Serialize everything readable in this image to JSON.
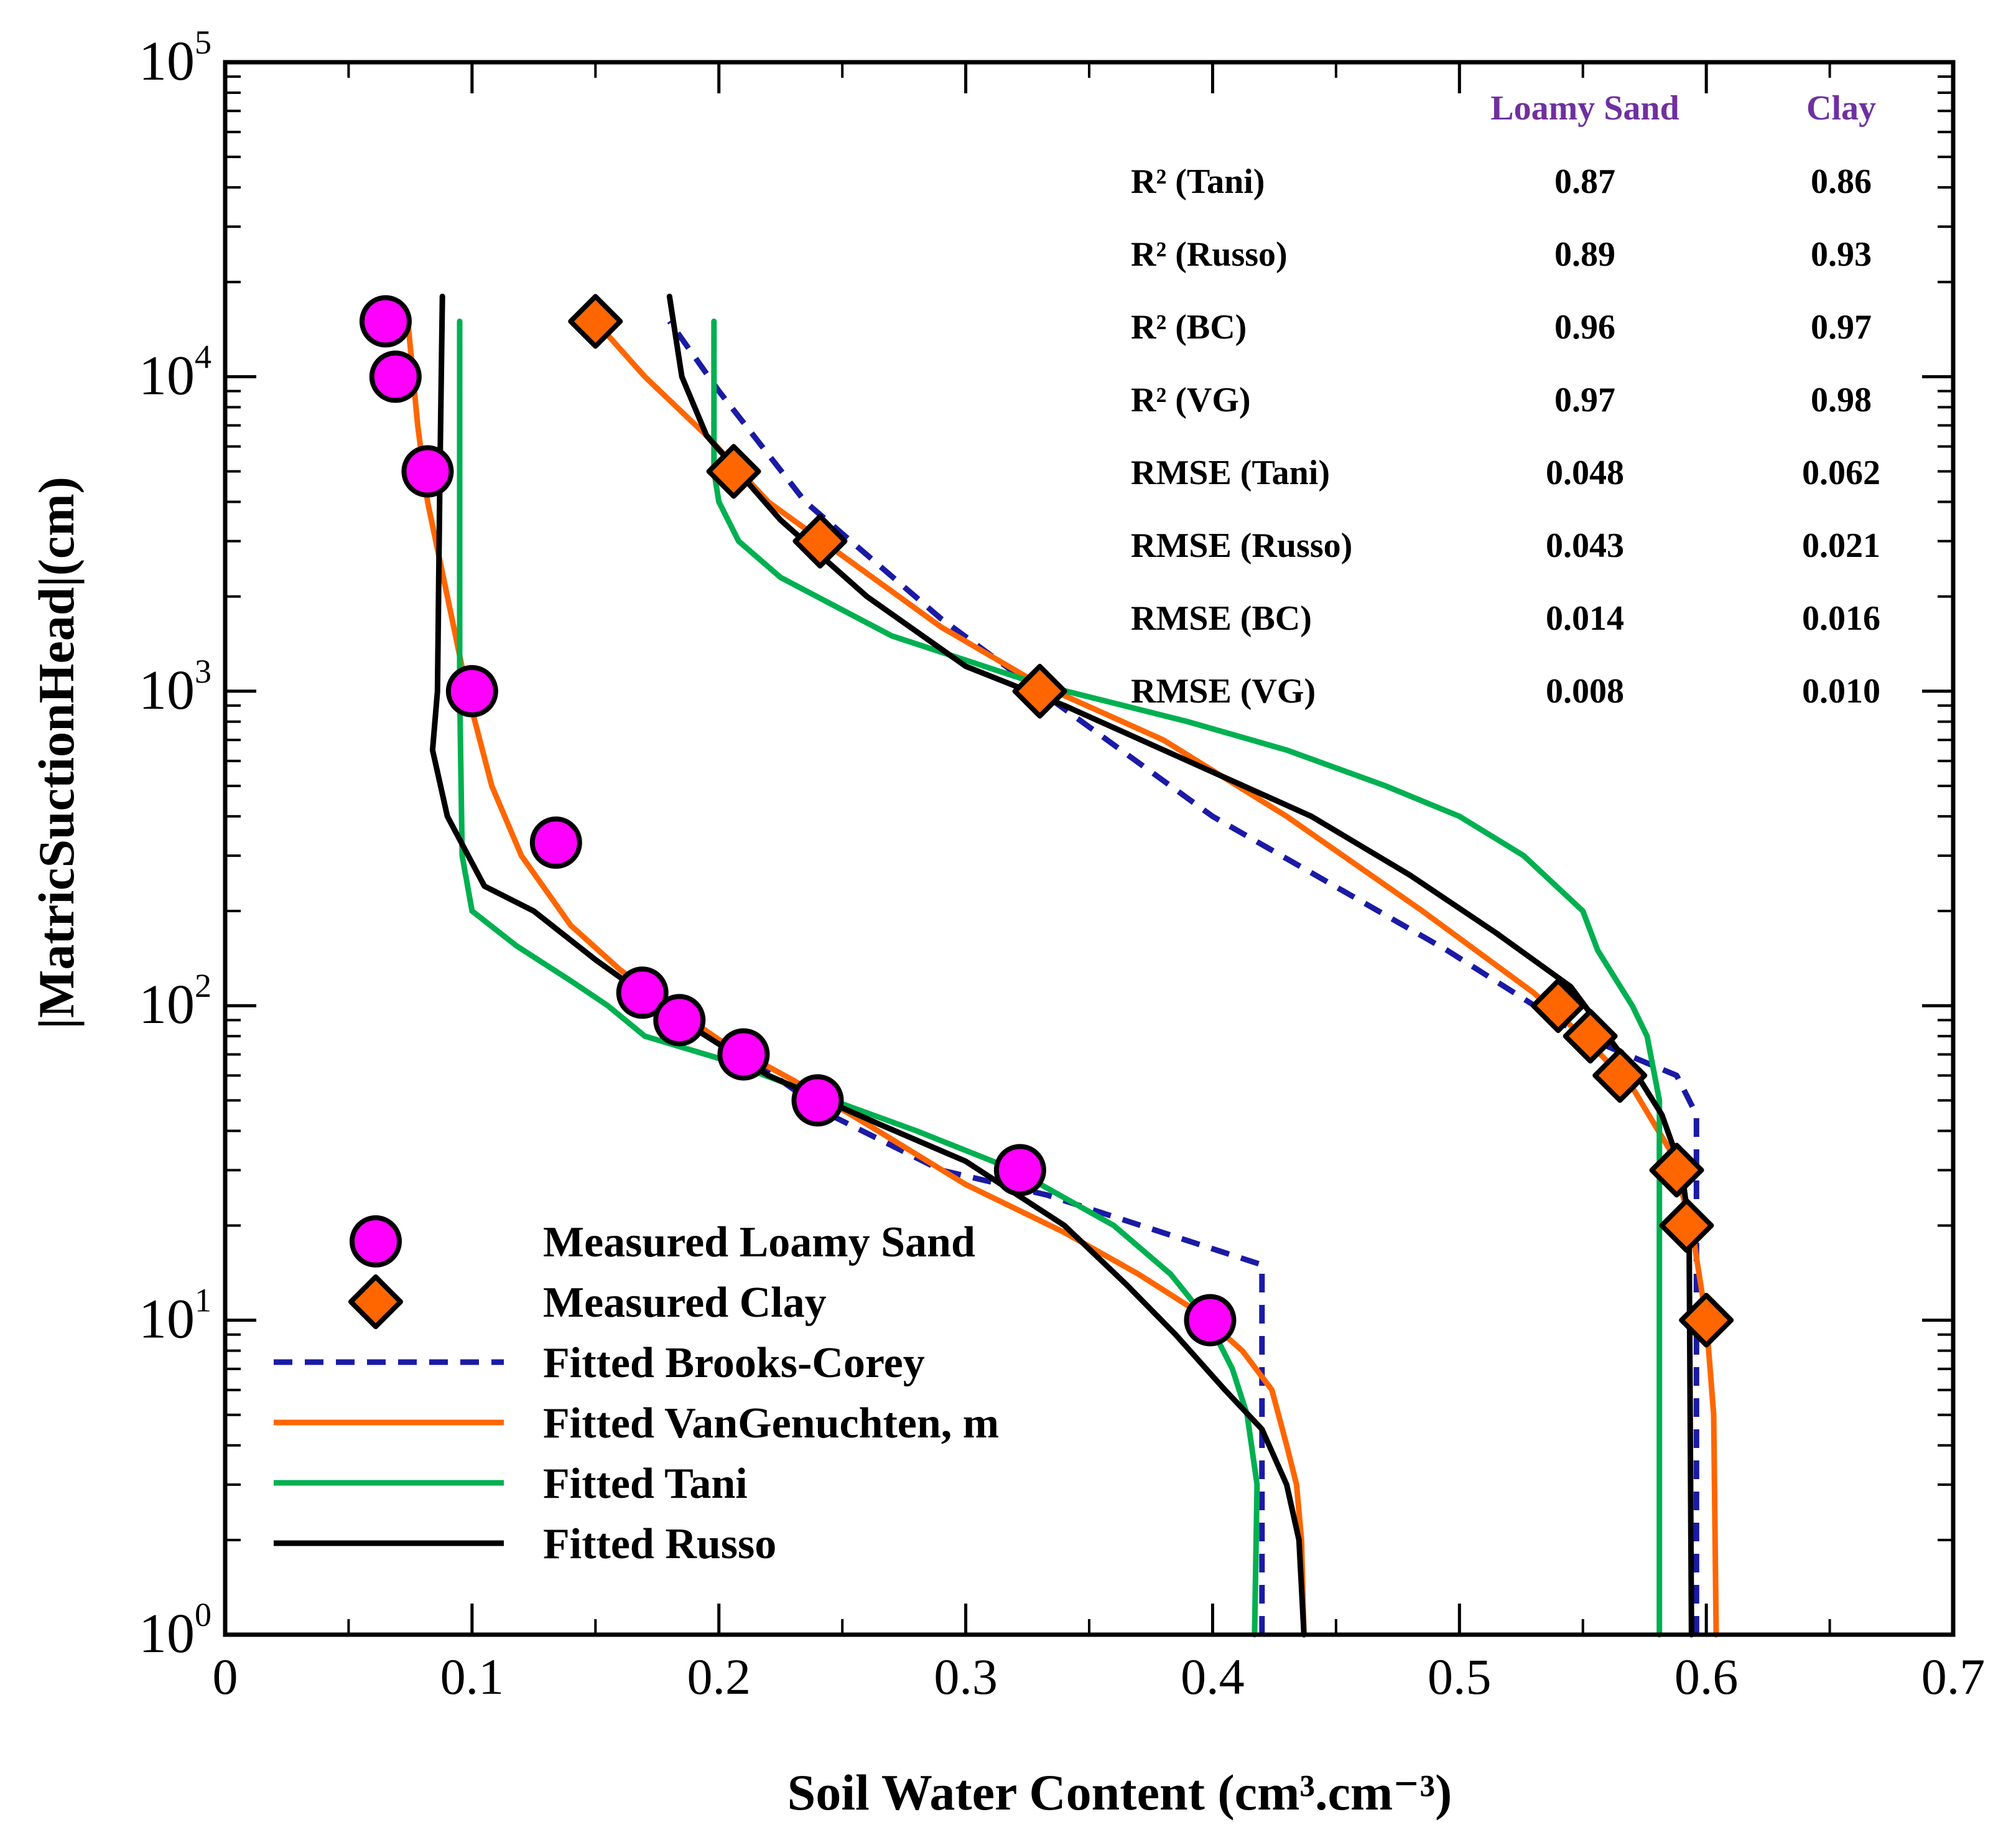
{
  "chart_data": {
    "type": "scatter",
    "xlabel": "Soil Water Content (cm³.cm⁻³)",
    "ylabel": "|MatricSuctionHead|(cm)",
    "xlim": [
      0,
      0.7
    ],
    "ylim": [
      1,
      100000
    ],
    "yscale": "log",
    "x_ticks": [
      "0",
      "0.1",
      "0.2",
      "0.3",
      "0.4",
      "0.5",
      "0.6",
      "0.7"
    ],
    "x_tick_values": [
      0,
      0.1,
      0.2,
      0.3,
      0.4,
      0.5,
      0.6,
      0.7
    ],
    "y_ticks": [
      {
        "value": 1,
        "base": "10",
        "exp": "0"
      },
      {
        "value": 10,
        "base": "10",
        "exp": "1"
      },
      {
        "value": 100,
        "base": "10",
        "exp": "2"
      },
      {
        "value": 1000,
        "base": "10",
        "exp": "3"
      },
      {
        "value": 10000,
        "base": "10",
        "exp": "4"
      },
      {
        "value": 100000,
        "base": "10",
        "exp": "5"
      }
    ],
    "grid": false,
    "legend_position": "bottom-left",
    "series": [
      {
        "name": "Measured Loamy Sand",
        "kind": "marker",
        "marker": "circle",
        "color": "#ff00ff",
        "edge": "#000000",
        "points": [
          [
            0.065,
            15000
          ],
          [
            0.069,
            10000
          ],
          [
            0.082,
            5000
          ],
          [
            0.1,
            1000
          ],
          [
            0.134,
            330
          ],
          [
            0.169,
            110
          ],
          [
            0.184,
            90
          ],
          [
            0.21,
            70
          ],
          [
            0.24,
            50
          ],
          [
            0.322,
            30
          ],
          [
            0.399,
            10
          ]
        ]
      },
      {
        "name": "Measured Clay",
        "kind": "marker",
        "marker": "diamond",
        "color": "#ff6600",
        "edge": "#000000",
        "points": [
          [
            0.15,
            15000
          ],
          [
            0.206,
            5000
          ],
          [
            0.241,
            3000
          ],
          [
            0.33,
            1000
          ],
          [
            0.54,
            100
          ],
          [
            0.553,
            80
          ],
          [
            0.565,
            60
          ],
          [
            0.588,
            30
          ],
          [
            0.592,
            20
          ],
          [
            0.6,
            10
          ]
        ]
      },
      {
        "name": "Fitted Brooks-Corey",
        "kind": "line",
        "dash": "dashed",
        "color": "#1a1aa6",
        "curves": [
          [
            [
              0.42,
              1
            ],
            [
              0.42,
              15
            ],
            [
              0.333,
              25
            ],
            [
              0.29,
              30
            ],
            [
              0.245,
              45
            ],
            [
              0.21,
              70
            ],
            [
              0.185,
              88
            ],
            [
              0.168,
              110
            ]
          ],
          [
            [
              0.596,
              1
            ],
            [
              0.596,
              45
            ],
            [
              0.588,
              60
            ],
            [
              0.55,
              80
            ],
            [
              0.495,
              150
            ],
            [
              0.4,
              400
            ],
            [
              0.33,
              1000
            ],
            [
              0.29,
              1700
            ],
            [
              0.235,
              4000
            ],
            [
              0.2,
              9000
            ],
            [
              0.18,
              15000
            ]
          ]
        ]
      },
      {
        "name": "Fitted VanGenuchten, m",
        "kind": "line",
        "dash": "solid",
        "color": "#ff6600",
        "curves": [
          [
            [
              0.437,
              1
            ],
            [
              0.436,
              2
            ],
            [
              0.434,
              3
            ],
            [
              0.43,
              4
            ],
            [
              0.424,
              6
            ],
            [
              0.412,
              8
            ],
            [
              0.395,
              10.5
            ],
            [
              0.37,
              14
            ],
            [
              0.34,
              19
            ],
            [
              0.3,
              27
            ],
            [
              0.26,
              42
            ],
            [
              0.23,
              58
            ],
            [
              0.2,
              78
            ],
            [
              0.18,
              100
            ],
            [
              0.16,
              130
            ],
            [
              0.14,
              180
            ],
            [
              0.12,
              300
            ],
            [
              0.108,
              500
            ],
            [
              0.098,
              1000
            ],
            [
              0.09,
              2000
            ],
            [
              0.082,
              4000
            ],
            [
              0.078,
              7000
            ],
            [
              0.074,
              15000
            ]
          ],
          [
            [
              0.604,
              1
            ],
            [
              0.603,
              5
            ],
            [
              0.6,
              10
            ],
            [
              0.594,
              20
            ],
            [
              0.585,
              35
            ],
            [
              0.57,
              55
            ],
            [
              0.55,
              80
            ],
            [
              0.53,
              110
            ],
            [
              0.485,
              200
            ],
            [
              0.43,
              400
            ],
            [
              0.38,
              700
            ],
            [
              0.33,
              1050
            ],
            [
              0.29,
              1600
            ],
            [
              0.25,
              2700
            ],
            [
              0.22,
              4000
            ],
            [
              0.195,
              6500
            ],
            [
              0.17,
              10000
            ],
            [
              0.15,
              15000
            ]
          ]
        ]
      },
      {
        "name": "Fitted Tani",
        "kind": "line",
        "dash": "solid",
        "color": "#00b050",
        "curves": [
          [
            [
              0.417,
              1
            ],
            [
              0.418,
              3
            ],
            [
              0.414,
              5
            ],
            [
              0.408,
              7
            ],
            [
              0.398,
              10
            ],
            [
              0.383,
              14
            ],
            [
              0.36,
              20
            ],
            [
              0.32,
              30
            ],
            [
              0.28,
              40
            ],
            [
              0.24,
              52
            ],
            [
              0.2,
              68
            ],
            [
              0.17,
              80
            ],
            [
              0.155,
              100
            ],
            [
              0.14,
              120
            ],
            [
              0.118,
              155
            ],
            [
              0.1,
              200
            ],
            [
              0.096,
              300
            ],
            [
              0.095,
              1000
            ],
            [
              0.095,
              15000
            ]
          ],
          [
            [
              0.581,
              1
            ],
            [
              0.581,
              50
            ],
            [
              0.576,
              80
            ],
            [
              0.57,
              100
            ],
            [
              0.556,
              150
            ],
            [
              0.55,
              200
            ],
            [
              0.526,
              300
            ],
            [
              0.5,
              400
            ],
            [
              0.47,
              500
            ],
            [
              0.43,
              650
            ],
            [
              0.39,
              800
            ],
            [
              0.33,
              1050
            ],
            [
              0.27,
              1500
            ],
            [
              0.225,
              2300
            ],
            [
              0.208,
              3000
            ],
            [
              0.2,
              4000
            ],
            [
              0.198,
              5000
            ],
            [
              0.198,
              15000
            ]
          ]
        ]
      },
      {
        "name": "Fitted Russo",
        "kind": "line",
        "dash": "solid",
        "color": "#000000",
        "curves": [
          [
            [
              0.437,
              1
            ],
            [
              0.435,
              2
            ],
            [
              0.43,
              3
            ],
            [
              0.42,
              4.5
            ],
            [
              0.405,
              6
            ],
            [
              0.385,
              9
            ],
            [
              0.365,
              13
            ],
            [
              0.34,
              20
            ],
            [
              0.3,
              32
            ],
            [
              0.265,
              42
            ],
            [
              0.22,
              60
            ],
            [
              0.18,
              95
            ],
            [
              0.15,
              140
            ],
            [
              0.125,
              200
            ],
            [
              0.105,
              240
            ],
            [
              0.09,
              400
            ],
            [
              0.084,
              650
            ],
            [
              0.086,
              1000
            ],
            [
              0.087,
              5000
            ],
            [
              0.088,
              18000
            ]
          ],
          [
            [
              0.594,
              1
            ],
            [
              0.593,
              20
            ],
            [
              0.59,
              30
            ],
            [
              0.582,
              45
            ],
            [
              0.572,
              60
            ],
            [
              0.56,
              80
            ],
            [
              0.545,
              115
            ],
            [
              0.515,
              170
            ],
            [
              0.48,
              260
            ],
            [
              0.44,
              400
            ],
            [
              0.39,
              600
            ],
            [
              0.34,
              900
            ],
            [
              0.3,
              1200
            ],
            [
              0.26,
              2000
            ],
            [
              0.225,
              3500
            ],
            [
              0.195,
              6500
            ],
            [
              0.185,
              10000
            ],
            [
              0.18,
              18000
            ]
          ]
        ]
      }
    ],
    "stats_table": {
      "columns": [
        "Loamy Sand",
        "Clay"
      ],
      "header_color": "#7030a0",
      "rows": [
        {
          "label": "R² (Tani)",
          "values": [
            "0.87",
            "0.86"
          ]
        },
        {
          "label": "R² (Russo)",
          "values": [
            "0.89",
            "0.93"
          ]
        },
        {
          "label": "R² (BC)",
          "values": [
            "0.96",
            "0.97"
          ]
        },
        {
          "label": "R² (VG)",
          "values": [
            "0.97",
            "0.98"
          ]
        },
        {
          "label": "RMSE (Tani)",
          "values": [
            "0.048",
            "0.062"
          ]
        },
        {
          "label": "RMSE (Russo)",
          "values": [
            "0.043",
            "0.021"
          ]
        },
        {
          "label": "RMSE (BC)",
          "values": [
            "0.014",
            "0.016"
          ]
        },
        {
          "label": "RMSE (VG)",
          "values": [
            "0.008",
            "0.010"
          ]
        }
      ]
    }
  }
}
